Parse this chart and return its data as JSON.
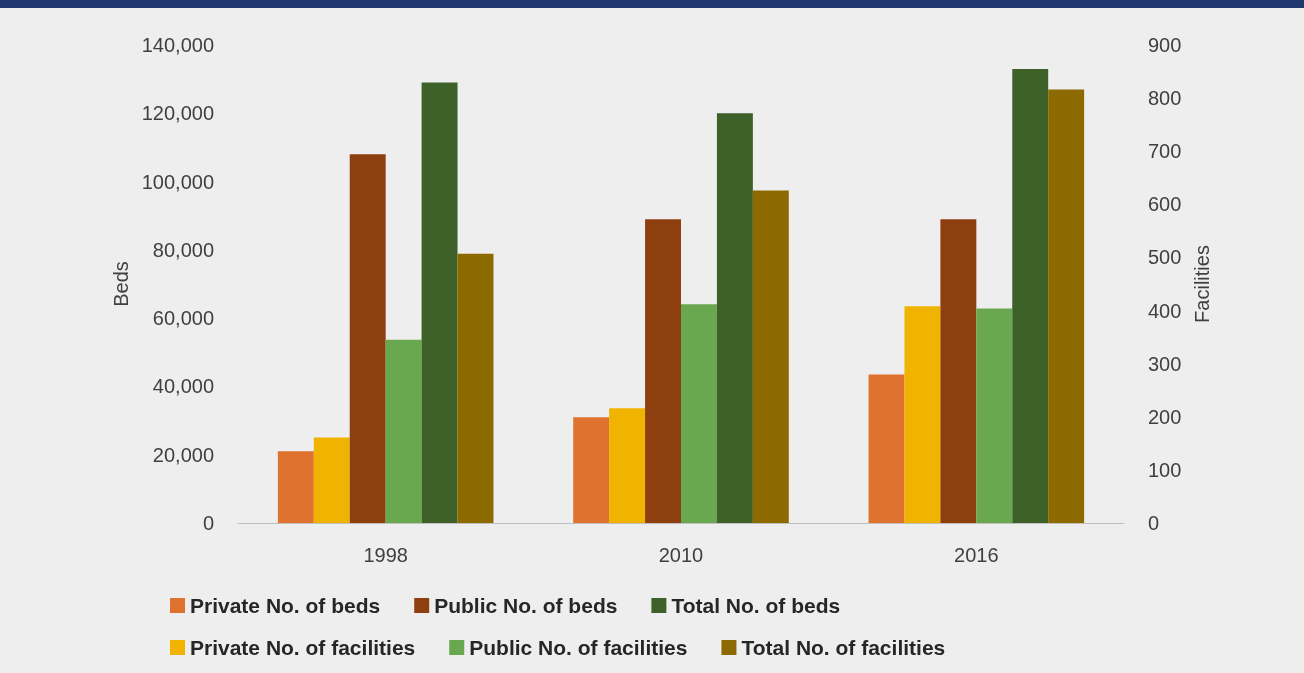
{
  "chart_data": {
    "type": "bar",
    "ylabel": "Beds",
    "y2label": "Facilities",
    "categories": [
      "1998",
      "2010",
      "2016"
    ],
    "series": [
      {
        "name": "Private No. of beds",
        "color": "#e07230",
        "values": [
          21000,
          31000,
          43500
        ]
      },
      {
        "name": "Private No. of facilities",
        "color": "#f0b400",
        "axis": "y2",
        "values": [
          161,
          216,
          408
        ]
      },
      {
        "name": "Public No. of beds",
        "color": "#8e3f10",
        "values": [
          108000,
          89000,
          89000
        ]
      },
      {
        "name": "Public No. of facilities",
        "color": "#6aa84f",
        "axis": "y2",
        "values": [
          345,
          412,
          404
        ]
      },
      {
        "name": "Total No. of beds",
        "color": "#3d6128",
        "values": [
          129000,
          120000,
          133000
        ]
      },
      {
        "name": "Total No. of facilities",
        "color": "#8c6a00",
        "axis": "y2",
        "values": [
          507,
          626,
          816
        ]
      }
    ],
    "ylim": [
      0,
      140000
    ],
    "yticks": [
      0,
      {
        "value": 20000,
        "label": "20,000"
      },
      {
        "value": 40000,
        "label": "40,000"
      },
      {
        "value": 60000,
        "label": "60,000"
      },
      {
        "value": 80000,
        "label": "80,000"
      },
      {
        "value": 100000,
        "label": "100,000"
      },
      {
        "value": 120000,
        "label": "120,000"
      },
      {
        "value": 140000,
        "label": "140,000"
      }
    ],
    "y2lim": [
      0,
      900
    ],
    "y2ticks": [
      0,
      100,
      200,
      300,
      400,
      500,
      600,
      700,
      800,
      900
    ],
    "grid": false,
    "legend": "bottom"
  }
}
